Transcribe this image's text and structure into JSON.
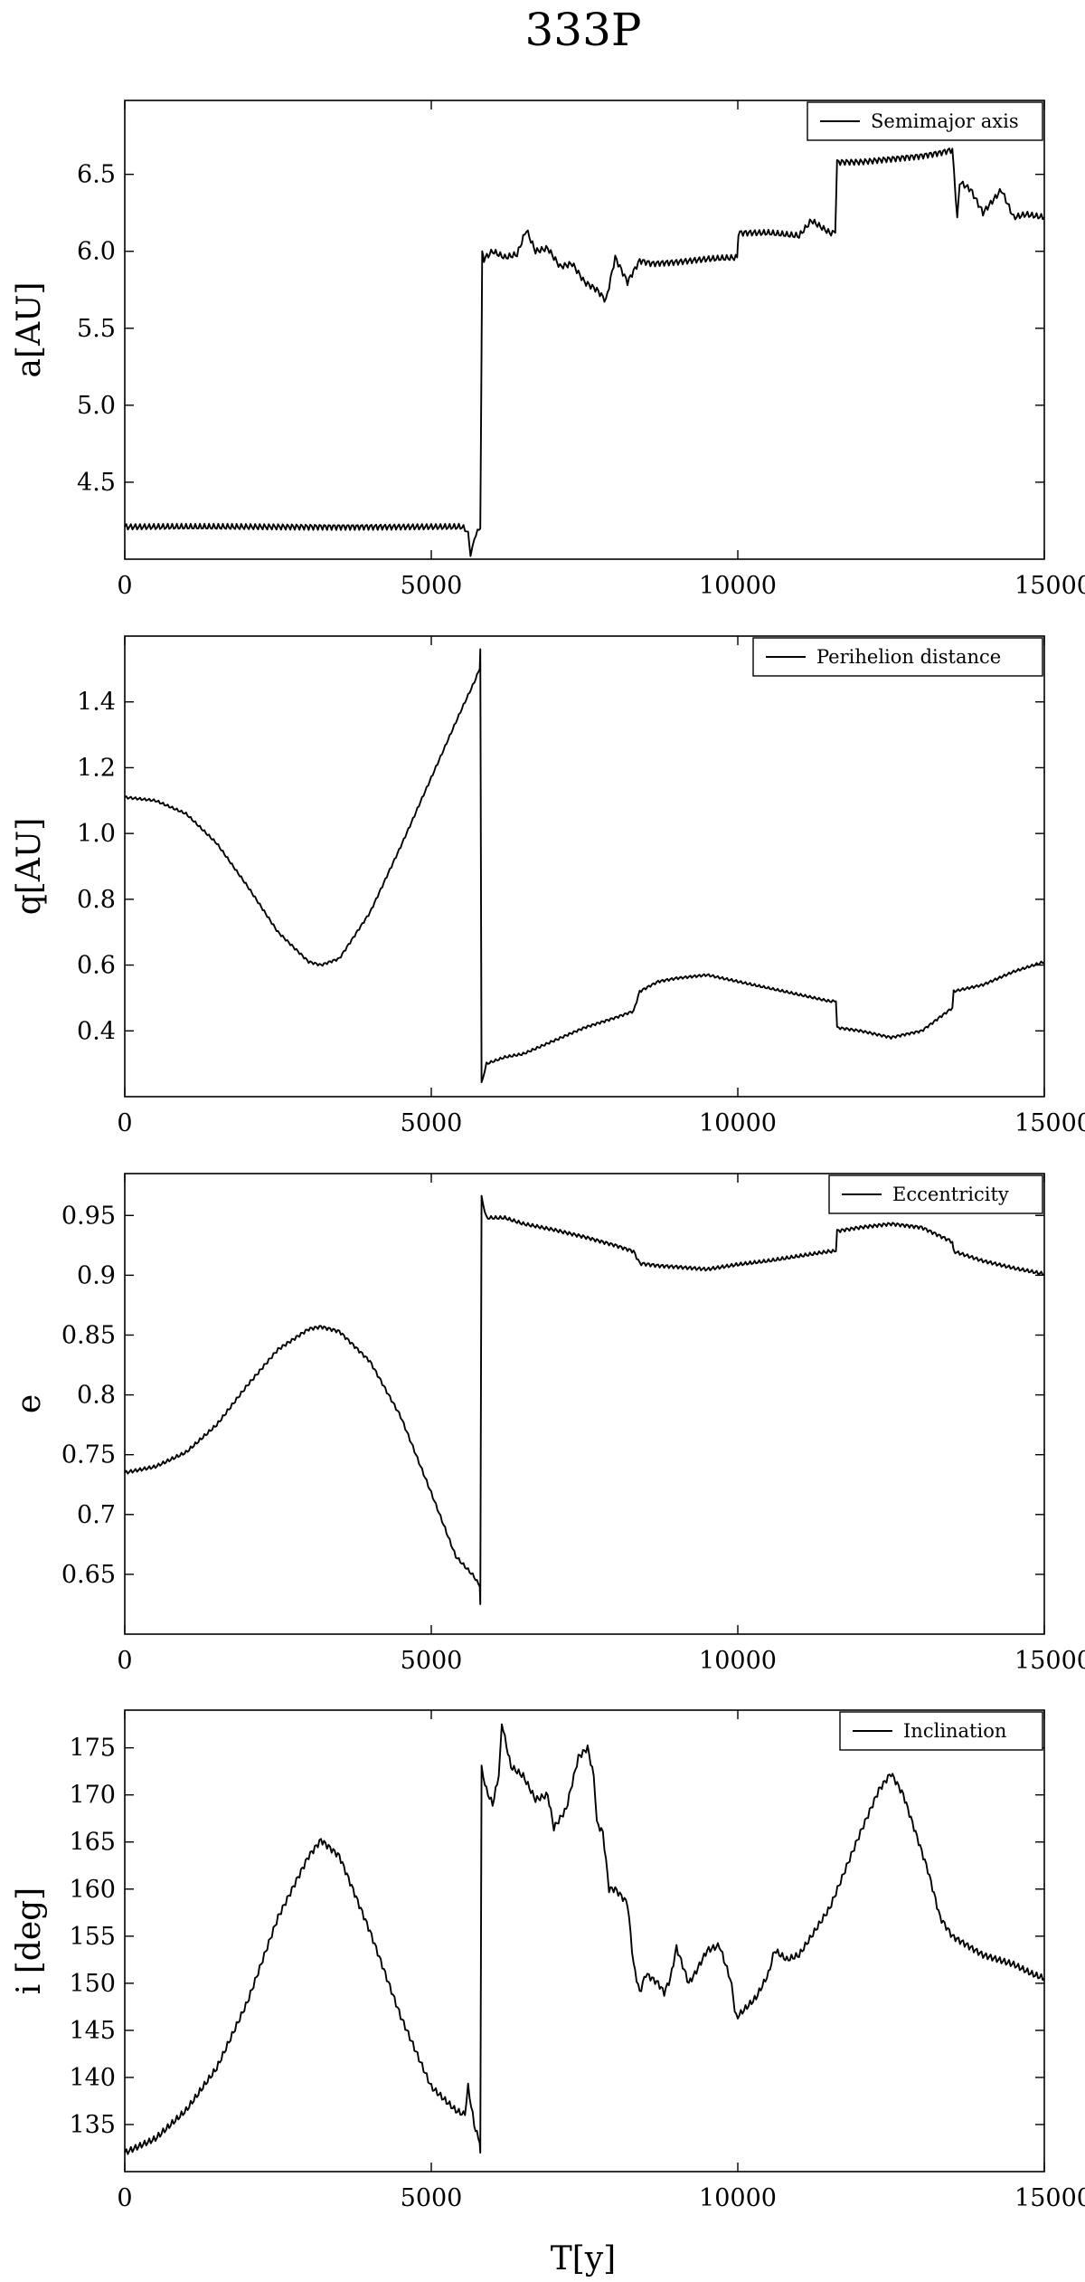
{
  "figure": {
    "title": "333P",
    "xlabel": "T[y]"
  },
  "chart_data": [
    {
      "type": "line",
      "ylabel": "a[AU]",
      "xlim": [
        0,
        15000
      ],
      "ylim": [
        4.0,
        6.98
      ],
      "xticks": [
        "0",
        "5000",
        "10000",
        "15000"
      ],
      "yticks": [
        "4.5",
        "5.0",
        "5.5",
        "6.0",
        "6.5"
      ],
      "legend": "Semimajor axis",
      "legend_position": "top-right",
      "grid": false,
      "osc_amplitude": 0.02,
      "series": [
        {
          "name": "Semimajor axis",
          "x": [
            0,
            5500,
            5600,
            5640,
            5700,
            5780,
            5800,
            5830,
            5860,
            6000,
            6200,
            6400,
            6550,
            6700,
            6900,
            7100,
            7300,
            7500,
            7700,
            7850,
            8000,
            8200,
            8400,
            8600,
            9000,
            9500,
            9990,
            10010,
            10500,
            11000,
            11200,
            11500,
            11590,
            11620,
            12000,
            12500,
            13000,
            13300,
            13500,
            13580,
            13620,
            13800,
            14000,
            14300,
            14500,
            14700,
            15000
          ],
          "y": [
            4.21,
            4.21,
            4.18,
            4.02,
            4.14,
            4.19,
            4.2,
            6.0,
            5.95,
            6.0,
            5.96,
            5.98,
            6.14,
            6.0,
            6.02,
            5.9,
            5.92,
            5.8,
            5.75,
            5.68,
            5.96,
            5.8,
            5.94,
            5.92,
            5.93,
            5.95,
            5.96,
            6.12,
            6.12,
            6.1,
            6.2,
            6.12,
            6.12,
            6.58,
            6.58,
            6.6,
            6.62,
            6.64,
            6.66,
            6.22,
            6.45,
            6.4,
            6.25,
            6.4,
            6.22,
            6.24,
            6.22
          ]
        }
      ]
    },
    {
      "type": "line",
      "ylabel": "q[AU]",
      "xlim": [
        0,
        15000
      ],
      "ylim": [
        0.2,
        1.6
      ],
      "xticks": [
        "0",
        "5000",
        "10000",
        "15000"
      ],
      "yticks": [
        "0.4",
        "0.6",
        "0.8",
        "1.0",
        "1.2",
        "1.4"
      ],
      "legend": "Perihelion distance",
      "legend_position": "top-right",
      "grid": false,
      "osc_amplitude": 0.004,
      "series": [
        {
          "name": "Perihelion distance",
          "x": [
            0,
            500,
            1000,
            1500,
            2000,
            2500,
            3000,
            3200,
            3500,
            4000,
            4500,
            5000,
            5500,
            5700,
            5790,
            5800,
            5820,
            5900,
            6200,
            6500,
            7000,
            7500,
            8000,
            8300,
            8400,
            8700,
            9000,
            9500,
            10000,
            10500,
            11000,
            11500,
            11600,
            11620,
            12000,
            12500,
            13000,
            13500,
            13520,
            14000,
            14500,
            15000
          ],
          "y": [
            1.11,
            1.1,
            1.06,
            0.97,
            0.84,
            0.7,
            0.61,
            0.6,
            0.62,
            0.76,
            0.96,
            1.17,
            1.38,
            1.46,
            1.5,
            1.56,
            0.24,
            0.3,
            0.32,
            0.33,
            0.37,
            0.41,
            0.44,
            0.46,
            0.52,
            0.55,
            0.56,
            0.57,
            0.55,
            0.53,
            0.51,
            0.49,
            0.49,
            0.41,
            0.4,
            0.38,
            0.4,
            0.47,
            0.52,
            0.54,
            0.58,
            0.61
          ]
        }
      ]
    },
    {
      "type": "line",
      "ylabel": "e",
      "xlim": [
        0,
        15000
      ],
      "ylim": [
        0.6,
        0.985
      ],
      "xticks": [
        "0",
        "5000",
        "10000",
        "15000"
      ],
      "yticks": [
        "0.65",
        "0.7",
        "0.75",
        "0.8",
        "0.85",
        "0.9",
        "0.95"
      ],
      "legend": "Eccentricity",
      "legend_position": "top-right",
      "grid": false,
      "osc_amplitude": 0.0015,
      "series": [
        {
          "name": "Eccentricity",
          "x": [
            0,
            500,
            1000,
            1500,
            2000,
            2500,
            3000,
            3200,
            3500,
            4000,
            4500,
            5000,
            5400,
            5700,
            5790,
            5800,
            5820,
            5900,
            6200,
            6500,
            7000,
            7500,
            8000,
            8300,
            8400,
            8700,
            9000,
            9500,
            10000,
            10500,
            11000,
            11500,
            11600,
            11620,
            12000,
            12500,
            13000,
            13500,
            13520,
            14000,
            14500,
            15000
          ],
          "y": [
            0.735,
            0.74,
            0.752,
            0.775,
            0.808,
            0.838,
            0.855,
            0.857,
            0.853,
            0.828,
            0.782,
            0.718,
            0.665,
            0.648,
            0.64,
            0.625,
            0.965,
            0.948,
            0.948,
            0.943,
            0.938,
            0.932,
            0.925,
            0.92,
            0.91,
            0.908,
            0.907,
            0.905,
            0.909,
            0.912,
            0.916,
            0.92,
            0.92,
            0.937,
            0.94,
            0.943,
            0.94,
            0.928,
            0.92,
            0.912,
            0.906,
            0.901
          ]
        }
      ]
    },
    {
      "type": "line",
      "ylabel": "i [deg]",
      "xlim": [
        0,
        15000
      ],
      "ylim": [
        130,
        179
      ],
      "xticks": [
        "0",
        "5000",
        "10000",
        "15000"
      ],
      "yticks": [
        "135",
        "140",
        "145",
        "150",
        "155",
        "160",
        "165",
        "170",
        "175"
      ],
      "legend": "Inclination",
      "legend_position": "top-right",
      "grid": false,
      "osc_amplitude": 0.35,
      "series": [
        {
          "name": "Inclination",
          "x": [
            0,
            500,
            1000,
            1500,
            2000,
            2500,
            3000,
            3200,
            3500,
            4000,
            4500,
            5000,
            5400,
            5550,
            5600,
            5700,
            5790,
            5800,
            5820,
            5900,
            6000,
            6100,
            6150,
            6200,
            6300,
            6500,
            6700,
            6900,
            7000,
            7200,
            7400,
            7550,
            7650,
            7700,
            7800,
            7900,
            8000,
            8200,
            8300,
            8400,
            8500,
            8700,
            8800,
            8900,
            9000,
            9200,
            9300,
            9500,
            9700,
            9900,
            9950,
            10000,
            10300,
            10500,
            10600,
            10800,
            11000,
            11500,
            12000,
            12300,
            12500,
            12700,
            12900,
            13100,
            13300,
            13500,
            14000,
            14500,
            14800,
            15000
          ],
          "y": [
            132.0,
            133.5,
            136.5,
            141.0,
            148.0,
            157.0,
            163.5,
            165.2,
            163.5,
            155.5,
            146.5,
            139.0,
            136.5,
            136.0,
            139.0,
            135.0,
            133.0,
            132.0,
            172.8,
            170.5,
            169.0,
            172.0,
            177.5,
            176.0,
            173.0,
            172.0,
            169.5,
            170.0,
            166.5,
            168.5,
            174.0,
            175.0,
            172.0,
            167.0,
            166.0,
            160.0,
            160.0,
            158.5,
            152.0,
            149.0,
            151.0,
            150.0,
            149.0,
            150.5,
            153.8,
            150.0,
            151.0,
            153.5,
            154.0,
            150.0,
            147.0,
            146.5,
            148.5,
            151.0,
            153.5,
            152.5,
            153.0,
            158.0,
            166.0,
            170.5,
            172.3,
            170.0,
            166.0,
            162.0,
            157.0,
            155.0,
            153.0,
            152.0,
            151.0,
            150.5
          ]
        }
      ]
    }
  ]
}
